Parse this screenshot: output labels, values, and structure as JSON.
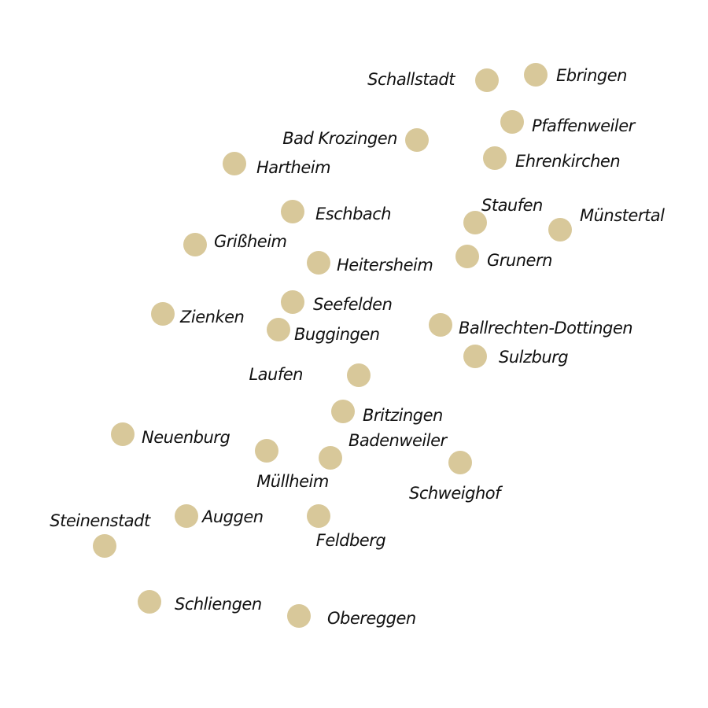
{
  "colors": {
    "dot": "#d8c89a",
    "label": "#111111",
    "background": "#ffffff"
  },
  "places": [
    {
      "id": "schallstadt",
      "name": "Schallstadt"
    },
    {
      "id": "ebringen",
      "name": "Ebringen"
    },
    {
      "id": "pfaffenweiler",
      "name": "Pfaffenweiler"
    },
    {
      "id": "bad-krozingen",
      "name": "Bad Krozingen"
    },
    {
      "id": "ehrenkirchen",
      "name": "Ehrenkirchen"
    },
    {
      "id": "hartheim",
      "name": "Hartheim"
    },
    {
      "id": "eschbach",
      "name": "Eschbach"
    },
    {
      "id": "staufen",
      "name": "Staufen"
    },
    {
      "id": "muenstertal",
      "name": "Münstertal"
    },
    {
      "id": "grissheim",
      "name": "Grißheim"
    },
    {
      "id": "grunern",
      "name": "Grunern"
    },
    {
      "id": "heitersheim",
      "name": "Heitersheim"
    },
    {
      "id": "seefelden",
      "name": "Seefelden"
    },
    {
      "id": "zienken",
      "name": "Zienken"
    },
    {
      "id": "ballrechten-dottingen",
      "name": "Ballrechten-Dottingen"
    },
    {
      "id": "buggingen",
      "name": "Buggingen"
    },
    {
      "id": "sulzburg",
      "name": "Sulzburg"
    },
    {
      "id": "laufen",
      "name": "Laufen"
    },
    {
      "id": "britzingen",
      "name": "Britzingen"
    },
    {
      "id": "neuenburg",
      "name": "Neuenburg"
    },
    {
      "id": "badenweiler",
      "name": "Badenweiler"
    },
    {
      "id": "muellheim",
      "name": "Müllheim"
    },
    {
      "id": "schweighof",
      "name": "Schweighof"
    },
    {
      "id": "steinenstadt",
      "name": "Steinenstadt"
    },
    {
      "id": "auggen",
      "name": "Auggen"
    },
    {
      "id": "feldberg",
      "name": "Feldberg"
    },
    {
      "id": "schliengen",
      "name": "Schliengen"
    },
    {
      "id": "obereggen",
      "name": "Obereggen"
    }
  ]
}
